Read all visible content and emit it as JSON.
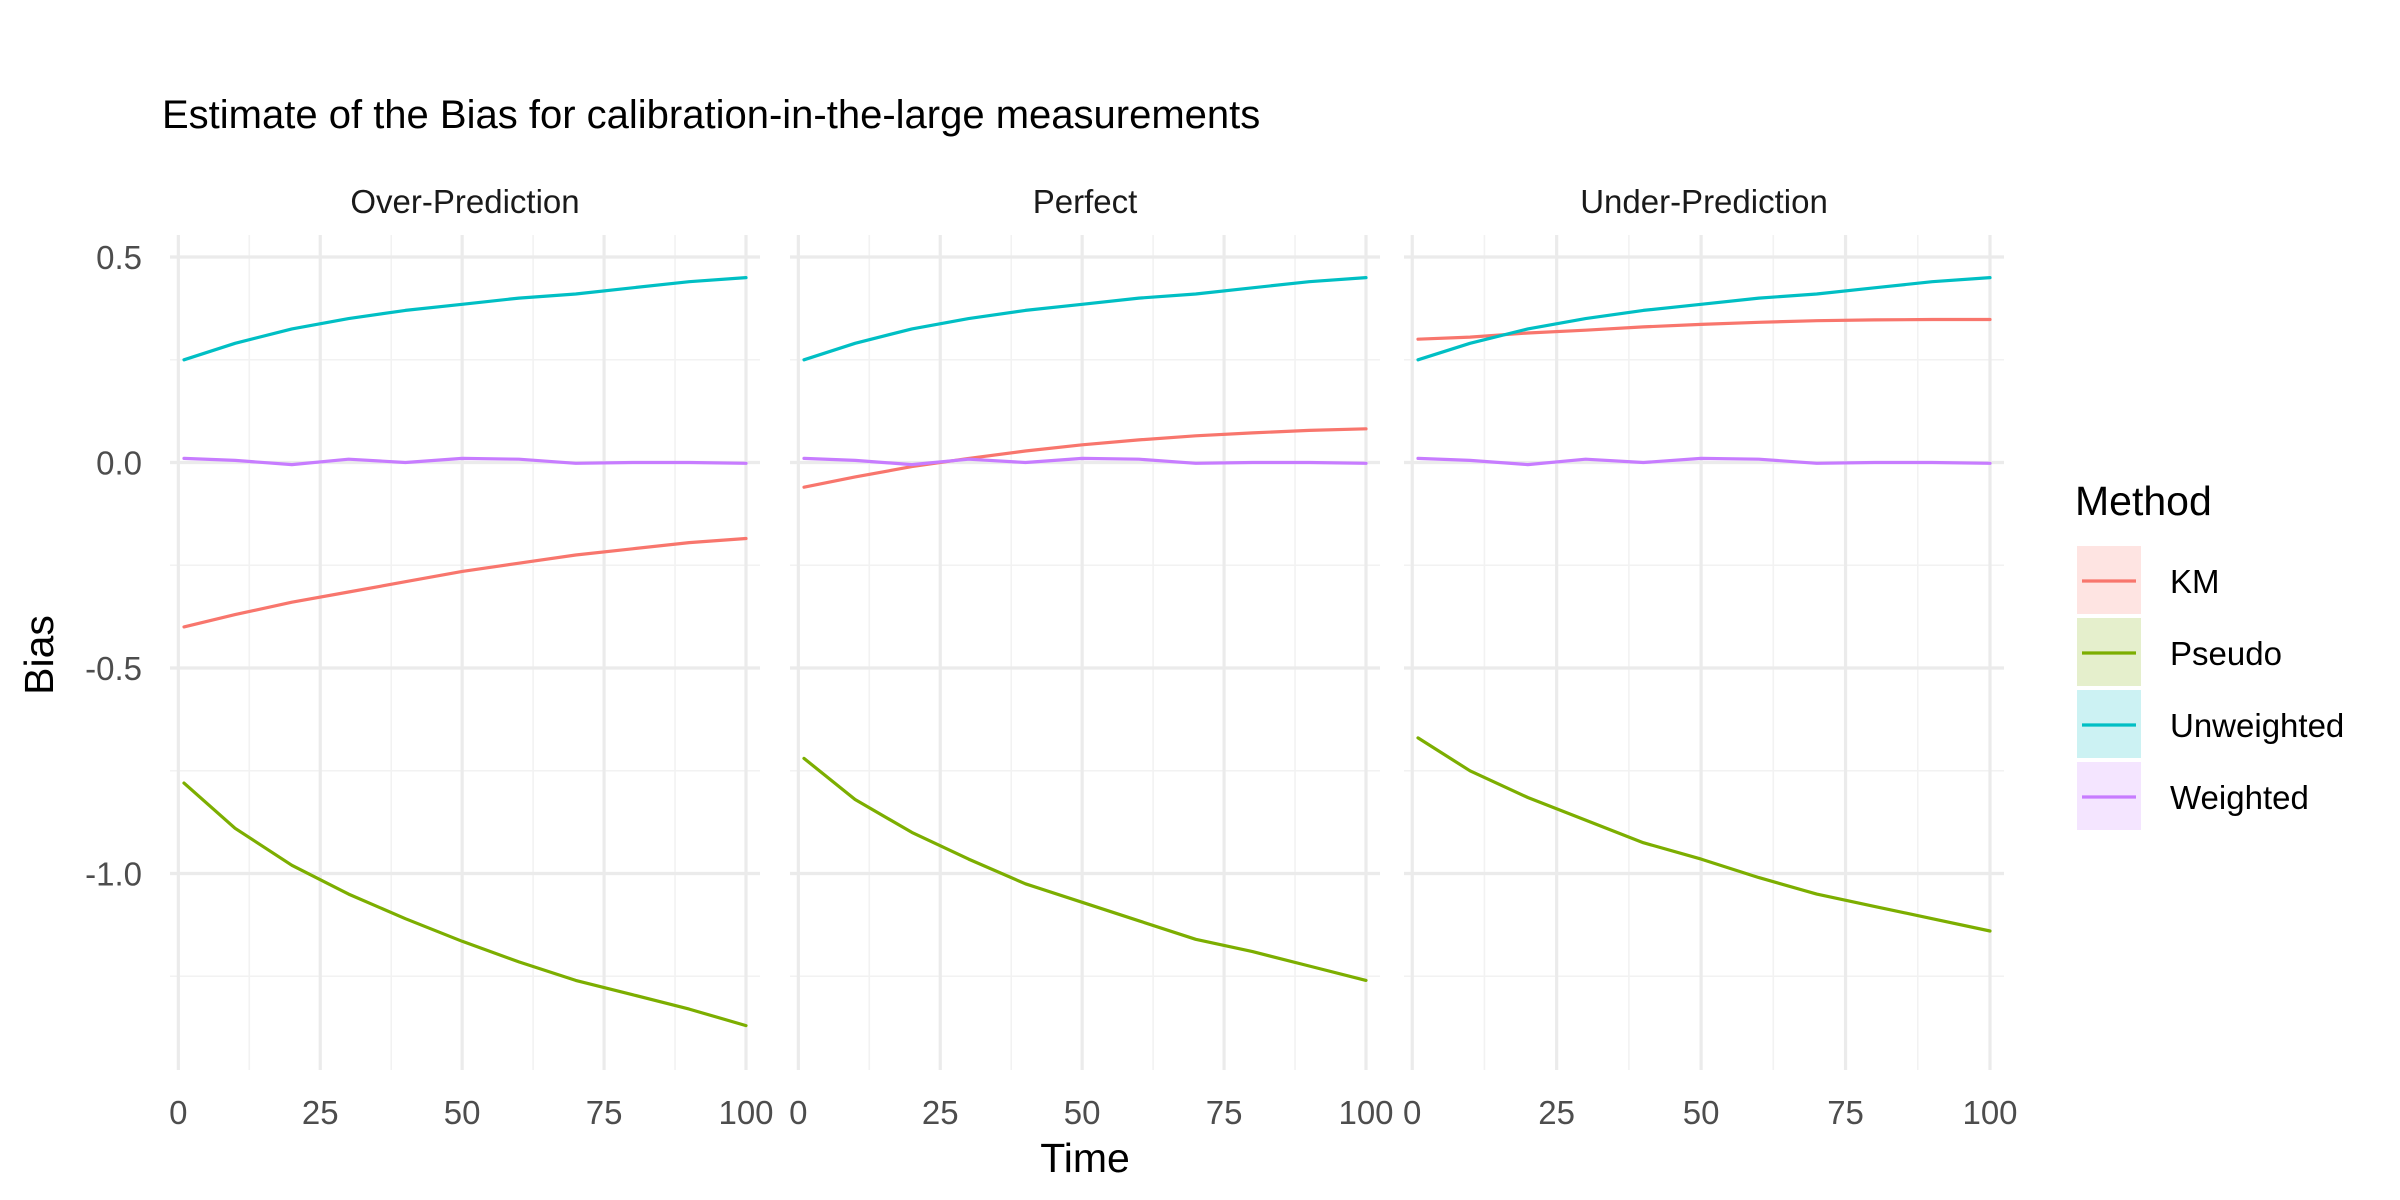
{
  "chart_data": {
    "type": "line",
    "title": "Estimate of the Bias for calibration-in-the-large measurements",
    "xlabel": "Time",
    "ylabel": "Bias",
    "xlim": [
      1,
      100
    ],
    "ylim": [
      -1.4,
      0.5
    ],
    "x_ticks": [
      0,
      25,
      50,
      75,
      100
    ],
    "y_ticks": [
      0.5,
      0.0,
      -0.5,
      -1.0
    ],
    "y_tick_labels": [
      "0.5",
      "0.0",
      "-0.5",
      "-1.0"
    ],
    "grid": true,
    "legend": {
      "title": "Method",
      "position": "right",
      "items": [
        {
          "name": "KM",
          "color": "#F8766D"
        },
        {
          "name": "Pseudo",
          "color": "#7CAE00"
        },
        {
          "name": "Unweighted",
          "color": "#00BFC4"
        },
        {
          "name": "Weighted",
          "color": "#C77CFF"
        }
      ]
    },
    "x": [
      1,
      10,
      20,
      30,
      40,
      50,
      60,
      70,
      80,
      90,
      100
    ],
    "panels": [
      {
        "label": "Over-Prediction",
        "series": [
          {
            "name": "KM",
            "values": [
              -0.4,
              -0.37,
              -0.34,
              -0.315,
              -0.29,
              -0.265,
              -0.245,
              -0.225,
              -0.21,
              -0.195,
              -0.185
            ]
          },
          {
            "name": "Pseudo",
            "values": [
              -0.78,
              -0.89,
              -0.98,
              -1.05,
              -1.11,
              -1.165,
              -1.215,
              -1.26,
              -1.295,
              -1.33,
              -1.37
            ]
          },
          {
            "name": "Unweighted",
            "values": [
              0.25,
              0.29,
              0.325,
              0.35,
              0.37,
              0.385,
              0.4,
              0.41,
              0.425,
              0.44,
              0.45
            ]
          },
          {
            "name": "Weighted",
            "values": [
              0.01,
              0.005,
              -0.005,
              0.008,
              0.0,
              0.01,
              0.008,
              -0.002,
              0.0,
              0.0,
              -0.002
            ]
          }
        ]
      },
      {
        "label": "Perfect",
        "series": [
          {
            "name": "KM",
            "values": [
              -0.06,
              -0.035,
              -0.01,
              0.01,
              0.028,
              0.043,
              0.055,
              0.065,
              0.072,
              0.078,
              0.082
            ]
          },
          {
            "name": "Pseudo",
            "values": [
              -0.72,
              -0.82,
              -0.9,
              -0.965,
              -1.025,
              -1.07,
              -1.115,
              -1.16,
              -1.19,
              -1.225,
              -1.26
            ]
          },
          {
            "name": "Unweighted",
            "values": [
              0.25,
              0.29,
              0.325,
              0.35,
              0.37,
              0.385,
              0.4,
              0.41,
              0.425,
              0.44,
              0.45
            ]
          },
          {
            "name": "Weighted",
            "values": [
              0.01,
              0.005,
              -0.005,
              0.008,
              0.0,
              0.01,
              0.008,
              -0.002,
              0.0,
              0.0,
              -0.002
            ]
          }
        ]
      },
      {
        "label": "Under-Prediction",
        "series": [
          {
            "name": "KM",
            "values": [
              0.3,
              0.305,
              0.315,
              0.322,
              0.33,
              0.336,
              0.341,
              0.345,
              0.347,
              0.348,
              0.348
            ]
          },
          {
            "name": "Pseudo",
            "values": [
              -0.67,
              -0.75,
              -0.815,
              -0.87,
              -0.925,
              -0.965,
              -1.01,
              -1.05,
              -1.08,
              -1.11,
              -1.14
            ]
          },
          {
            "name": "Unweighted",
            "values": [
              0.25,
              0.29,
              0.325,
              0.35,
              0.37,
              0.385,
              0.4,
              0.41,
              0.425,
              0.44,
              0.45
            ]
          },
          {
            "name": "Weighted",
            "values": [
              0.01,
              0.005,
              -0.005,
              0.008,
              0.0,
              0.01,
              0.008,
              -0.002,
              0.0,
              0.0,
              -0.002
            ]
          }
        ]
      }
    ]
  }
}
